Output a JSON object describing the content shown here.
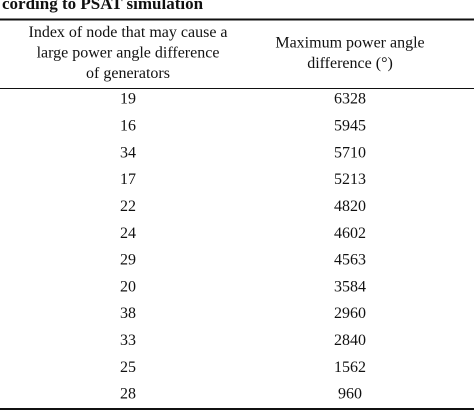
{
  "header": {
    "title": "cording to PSAT simulation"
  },
  "table": {
    "columns": [
      [
        "Index of node that may cause a",
        "large power angle difference",
        "of generators"
      ],
      [
        "Maximum power angle",
        "difference (°)"
      ]
    ],
    "rows": [
      [
        19,
        6328
      ],
      [
        16,
        5945
      ],
      [
        34,
        5710
      ],
      [
        17,
        5213
      ],
      [
        22,
        4820
      ],
      [
        24,
        4602
      ],
      [
        29,
        4563
      ],
      [
        20,
        3584
      ],
      [
        38,
        2960
      ],
      [
        33,
        2840
      ],
      [
        25,
        1562
      ],
      [
        28,
        960
      ]
    ]
  }
}
